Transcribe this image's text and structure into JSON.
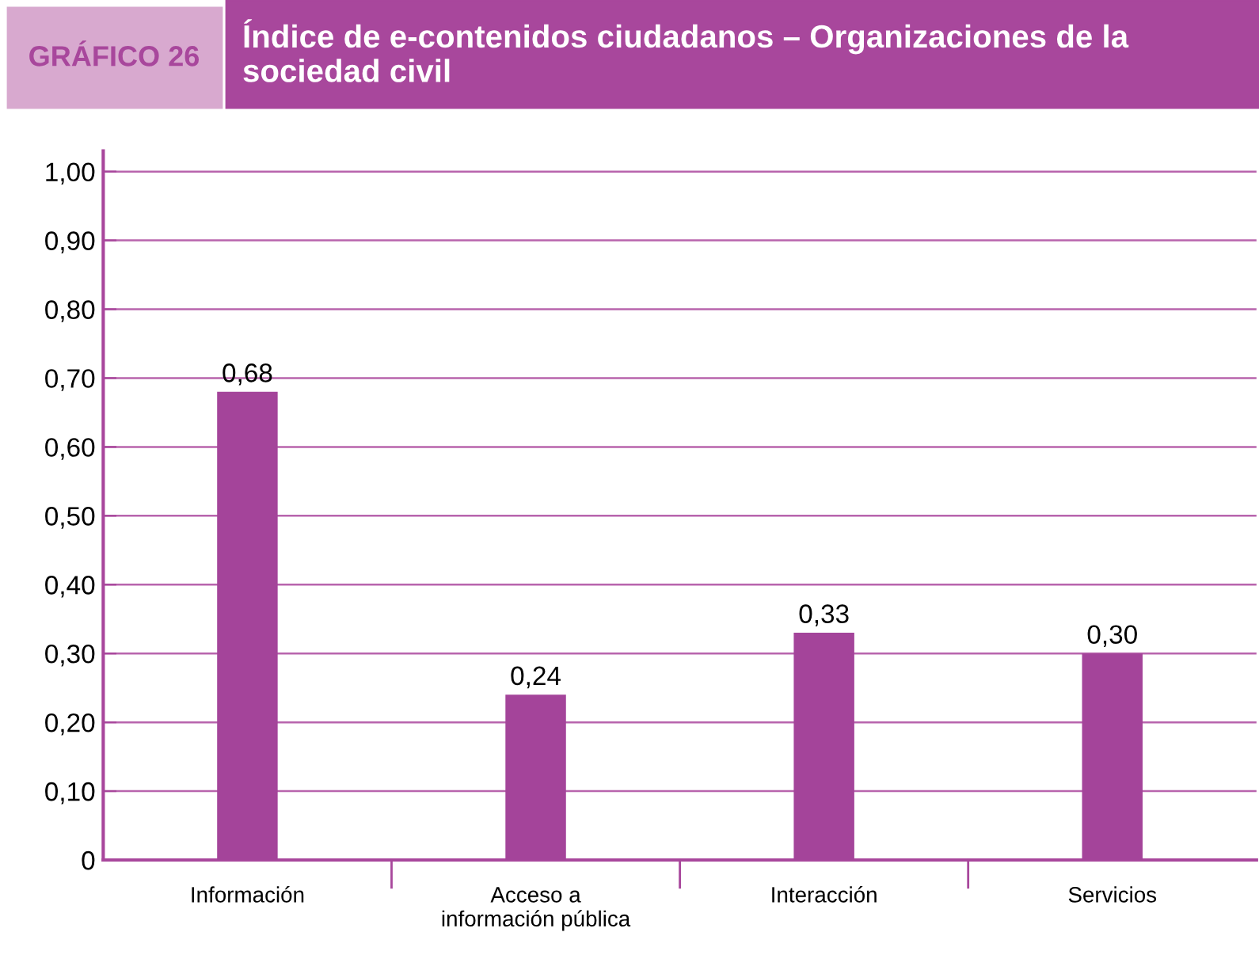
{
  "chart_data": {
    "type": "bar",
    "title": "Índice de e-contenidos ciudadanos – Organizaciones de la sociedad civil",
    "annotations": [
      "GRÁFICO 26"
    ],
    "categories": [
      "Información",
      "Acceso a\ninformación pública",
      "Interacción",
      "Servicios"
    ],
    "values": [
      0.68,
      0.24,
      0.33,
      0.3
    ],
    "value_labels": [
      "0,68",
      "0,24",
      "0,33",
      "0,30"
    ],
    "color": "#a4449a",
    "ylim": [
      0,
      1.03
    ],
    "yticks": [
      {
        "value": 0,
        "label": "0"
      },
      {
        "value": 0.1,
        "label": "0,10"
      },
      {
        "value": 0.2,
        "label": "0,20"
      },
      {
        "value": 0.3,
        "label": "0,30"
      },
      {
        "value": 0.4,
        "label": "0,40"
      },
      {
        "value": 0.5,
        "label": "0,50"
      },
      {
        "value": 0.6,
        "label": "0,60"
      },
      {
        "value": 0.7,
        "label": "0,70"
      },
      {
        "value": 0.8,
        "label": "0,80"
      },
      {
        "value": 0.9,
        "label": "0,90"
      },
      {
        "value": 1.0,
        "label": "1,00"
      }
    ],
    "grid": "y",
    "legend": false
  }
}
